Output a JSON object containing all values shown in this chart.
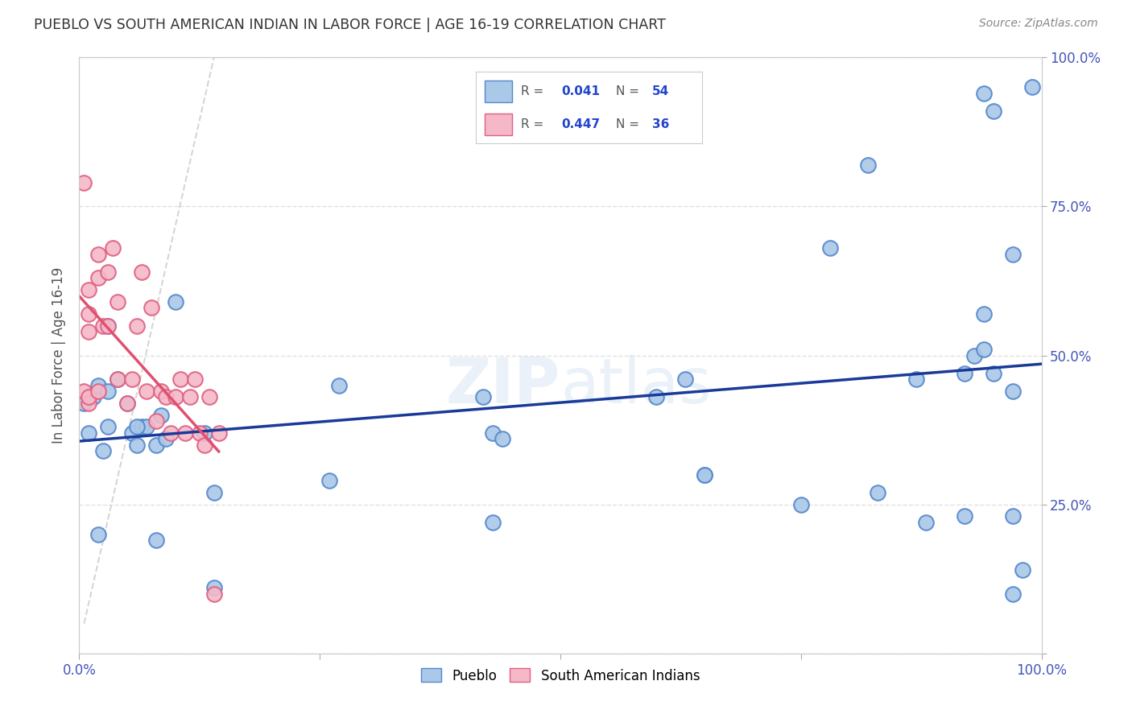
{
  "title": "PUEBLO VS SOUTH AMERICAN INDIAN IN LABOR FORCE | AGE 16-19 CORRELATION CHART",
  "source": "Source: ZipAtlas.com",
  "ylabel": "In Labor Force | Age 16-19",
  "xlim": [
    0,
    1
  ],
  "ylim": [
    0,
    1
  ],
  "xticks": [
    0.0,
    0.25,
    0.5,
    0.75,
    1.0
  ],
  "yticks": [
    0.0,
    0.25,
    0.5,
    0.75,
    1.0
  ],
  "pueblo_color": "#aac8e8",
  "pueblo_edge": "#5588cc",
  "sam_color": "#f4b8c8",
  "sam_edge": "#e06080",
  "blue_line_color": "#1a3a9a",
  "pink_line_color": "#e05070",
  "R_pueblo": 0.041,
  "N_pueblo": 54,
  "R_sam": 0.447,
  "N_sam": 36,
  "pueblo_x": [
    0.005,
    0.01,
    0.015,
    0.02,
    0.02,
    0.025,
    0.03,
    0.03,
    0.04,
    0.05,
    0.055,
    0.06,
    0.065,
    0.07,
    0.08,
    0.085,
    0.09,
    0.1,
    0.13,
    0.14,
    0.26,
    0.27,
    0.42,
    0.43,
    0.43,
    0.44,
    0.6,
    0.63,
    0.65,
    0.75,
    0.78,
    0.82,
    0.83,
    0.87,
    0.88,
    0.92,
    0.92,
    0.93,
    0.94,
    0.94,
    0.95,
    0.95,
    0.97,
    0.97,
    0.97,
    0.98,
    0.03,
    0.06,
    0.08,
    0.14,
    0.65,
    0.94,
    0.97,
    0.99
  ],
  "pueblo_y": [
    0.42,
    0.37,
    0.43,
    0.45,
    0.2,
    0.34,
    0.44,
    0.38,
    0.46,
    0.42,
    0.37,
    0.35,
    0.38,
    0.38,
    0.35,
    0.4,
    0.36,
    0.59,
    0.37,
    0.27,
    0.29,
    0.45,
    0.43,
    0.22,
    0.37,
    0.36,
    0.43,
    0.46,
    0.3,
    0.25,
    0.68,
    0.82,
    0.27,
    0.46,
    0.22,
    0.47,
    0.23,
    0.5,
    0.51,
    0.94,
    0.47,
    0.91,
    0.44,
    0.1,
    0.23,
    0.14,
    0.55,
    0.38,
    0.19,
    0.11,
    0.3,
    0.57,
    0.67,
    0.95
  ],
  "sam_x": [
    0.005,
    0.005,
    0.01,
    0.01,
    0.01,
    0.01,
    0.01,
    0.02,
    0.02,
    0.02,
    0.025,
    0.03,
    0.03,
    0.035,
    0.04,
    0.04,
    0.05,
    0.055,
    0.06,
    0.065,
    0.07,
    0.075,
    0.08,
    0.085,
    0.09,
    0.095,
    0.1,
    0.105,
    0.11,
    0.115,
    0.12,
    0.125,
    0.13,
    0.135,
    0.14,
    0.145
  ],
  "sam_y": [
    0.44,
    0.79,
    0.42,
    0.54,
    0.57,
    0.61,
    0.43,
    0.63,
    0.67,
    0.44,
    0.55,
    0.55,
    0.64,
    0.68,
    0.59,
    0.46,
    0.42,
    0.46,
    0.55,
    0.64,
    0.44,
    0.58,
    0.39,
    0.44,
    0.43,
    0.37,
    0.43,
    0.46,
    0.37,
    0.43,
    0.46,
    0.37,
    0.35,
    0.43,
    0.1,
    0.37
  ],
  "background_color": "#ffffff",
  "grid_color": "#dddddd",
  "title_color": "#333333"
}
